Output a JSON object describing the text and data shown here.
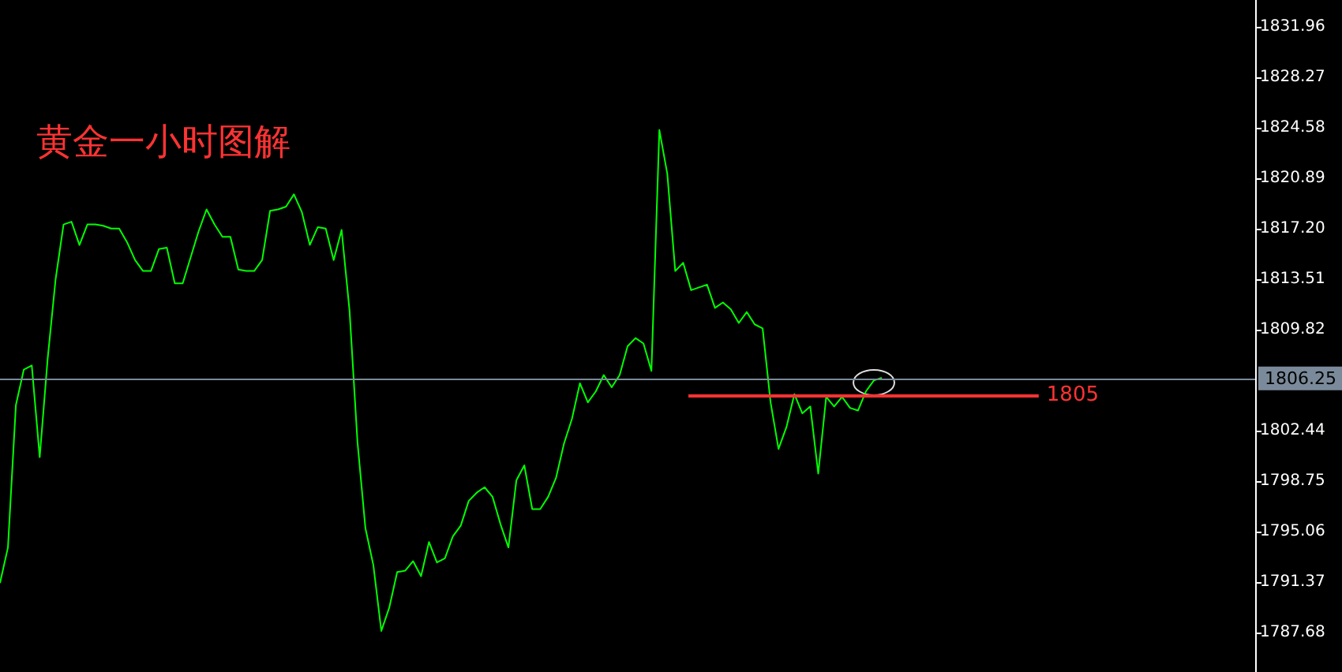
{
  "chart_data": {
    "type": "line",
    "title": "黄金一小时图解",
    "categories": [
      null,
      null,
      null,
      null,
      null,
      null,
      null,
      null,
      null,
      null,
      null,
      null,
      null,
      null,
      null,
      null,
      null,
      null,
      null,
      null,
      null,
      null,
      null,
      null,
      null,
      null,
      null,
      null,
      null,
      null,
      null,
      null,
      null,
      null,
      null,
      null,
      null,
      null,
      null,
      null,
      null,
      null,
      null,
      null,
      null,
      null,
      null,
      null,
      null,
      null,
      null,
      null,
      null,
      null,
      null,
      null,
      null,
      null,
      null,
      null,
      null,
      null,
      null,
      null,
      null,
      null,
      null,
      null,
      null,
      null,
      null,
      null,
      null,
      null,
      null,
      null,
      null,
      null,
      null,
      null,
      null,
      null,
      null,
      null,
      null,
      null,
      null,
      null,
      null,
      null,
      null,
      null,
      null,
      null,
      null,
      null,
      null,
      null,
      null,
      null,
      null,
      null,
      null,
      null,
      null,
      null,
      null,
      null,
      null,
      null,
      null,
      null,
      null,
      null,
      null,
      null,
      null,
      null,
      null,
      null,
      null,
      null,
      null,
      null,
      null,
      null,
      null,
      null,
      null,
      null,
      null,
      null,
      null,
      null,
      null,
      null,
      null,
      null,
      null,
      null,
      null,
      null,
      null,
      null,
      null,
      null,
      null,
      null,
      null,
      null,
      null,
      null,
      null,
      null,
      null,
      null,
      null,
      null,
      null
    ],
    "series": [
      {
        "color": "#00ff00",
        "values": [
          1791.3,
          1793.9,
          1804.3,
          1806.9,
          1807.2,
          1800.5,
          1807.7,
          1813.5,
          1817.5,
          1817.7,
          1816.0,
          1817.5,
          1817.5,
          1817.4,
          1817.2,
          1817.2,
          1816.2,
          1814.9,
          1814.1,
          1814.1,
          1815.7,
          1815.8,
          1813.2,
          1813.2,
          1815.1,
          1817.0,
          1818.6,
          1817.5,
          1816.6,
          1816.6,
          1814.2,
          1814.1,
          1814.1,
          1814.9,
          1818.5,
          1818.6,
          1818.8,
          1819.7,
          1818.4,
          1816.0,
          1817.3,
          1817.2,
          1814.9,
          1817.1,
          1811.2,
          1801.6,
          1795.3,
          1792.6,
          1787.8,
          1789.5,
          1792.1,
          1792.2,
          1792.9,
          1791.8,
          1794.3,
          1792.8,
          1793.1,
          1794.7,
          1795.5,
          1797.3,
          1797.9,
          1798.3,
          1797.6,
          1795.6,
          1793.9,
          1798.8,
          1799.9,
          1796.7,
          1796.7,
          1797.6,
          1799.0,
          1801.5,
          1803.3,
          1805.9,
          1804.5,
          1805.3,
          1806.5,
          1805.6,
          1806.5,
          1808.6,
          1809.2,
          1808.8,
          1806.8,
          1824.4,
          1821.2,
          1814.1,
          1814.7,
          1812.7,
          1812.9,
          1813.1,
          1811.4,
          1811.8,
          1811.3,
          1810.3,
          1811.1,
          1810.2,
          1809.9,
          1804.5,
          1801.1,
          1802.7,
          1805.1,
          1803.7,
          1804.2,
          1799.3,
          1804.9,
          1804.2,
          1804.9,
          1804.1,
          1803.9,
          1805.3,
          1806.1,
          1806.3,
          null,
          null,
          null,
          null,
          null,
          null,
          null,
          null,
          null,
          null,
          null,
          null,
          null,
          null,
          null,
          null,
          null,
          null,
          null,
          null,
          null,
          null,
          null,
          null,
          null,
          null,
          null,
          null,
          null,
          null,
          null,
          null,
          null,
          null,
          null,
          null,
          null,
          null,
          null,
          null,
          null,
          null,
          null,
          null,
          null,
          null,
          null
        ]
      }
    ],
    "ylim": [
      1784.8,
      1833.9
    ],
    "yticks": [
      1831.96,
      1828.27,
      1824.58,
      1820.89,
      {
        "value": 1817.2,
        "label": "1817.20"
      },
      1813.51,
      1809.82,
      1802.44,
      1798.75,
      1795.06,
      1791.37,
      1787.68
    ],
    "ref_lines": [
      {
        "axis": "y",
        "value": 1806.25,
        "label": "1806.25",
        "color": "#7a8a9a"
      },
      {
        "axis": "y",
        "value": 1805,
        "label": "1805",
        "color": "#ff3333"
      }
    ],
    "grid": false,
    "tick_labels": "y",
    "marker": "none",
    "line_style": "solid"
  }
}
